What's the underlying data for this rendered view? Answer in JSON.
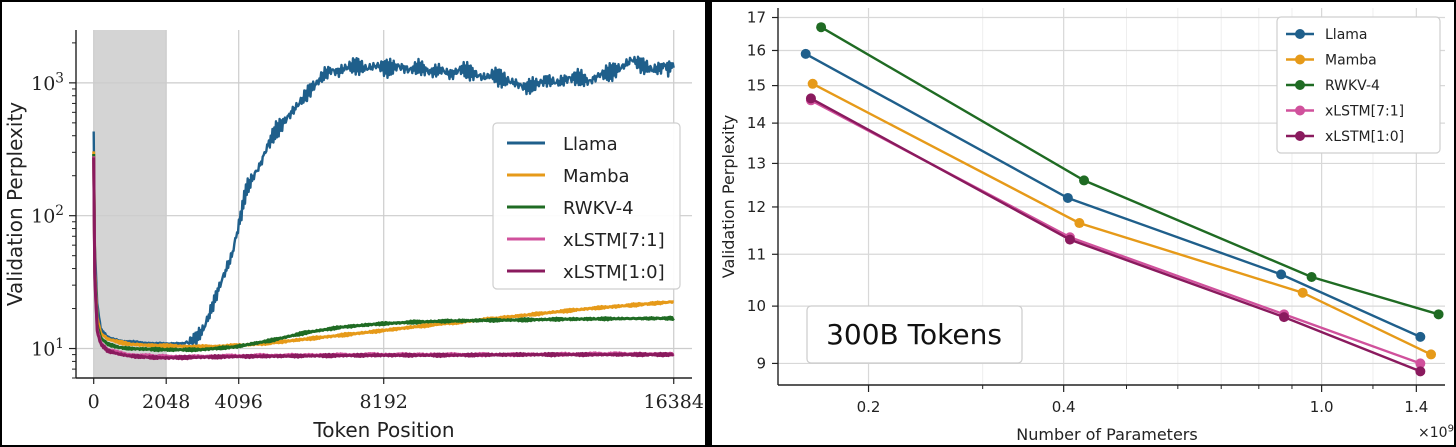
{
  "chart_data": [
    {
      "type": "line",
      "xlabel": "Token Position",
      "ylabel": "Validation Perplexity",
      "x_ticks": [
        0,
        2048,
        4096,
        8192,
        16384
      ],
      "y_tick_labels": [
        "10^1",
        "10^2",
        "10^3"
      ],
      "y_scale": "log",
      "xlim": [
        -500,
        16900
      ],
      "ylim": [
        6,
        2500
      ],
      "shaded_region": [
        0,
        2048
      ],
      "grid": true,
      "legend_position": "right",
      "series": [
        {
          "name": "Llama",
          "color": "#1f5f8b",
          "x": [
            0,
            30,
            100,
            200,
            400,
            700,
            1000,
            1500,
            2048,
            2500,
            2700,
            2900,
            3100,
            3300,
            3500,
            3700,
            3900,
            4100,
            4300,
            4500,
            4700,
            4900,
            5100,
            5300,
            5500,
            5700,
            5900,
            6100,
            6300,
            6500,
            6700,
            6900,
            7100,
            7400,
            7700,
            8000,
            8300,
            8600,
            8900,
            9200,
            9500,
            9800,
            10100,
            10400,
            10700,
            11000,
            11300,
            11600,
            11900,
            12200,
            12500,
            12800,
            13100,
            13400,
            13700,
            14000,
            14300,
            14600,
            14900,
            15200,
            15500,
            15800,
            16100,
            16384
          ],
          "y": [
            430,
            60,
            22,
            14,
            12.2,
            11.5,
            11.2,
            11.0,
            10.9,
            10.9,
            11.2,
            12,
            14,
            19,
            27,
            37,
            50,
            85,
            155,
            195,
            240,
            330,
            420,
            480,
            560,
            650,
            750,
            880,
            1000,
            1150,
            1250,
            1200,
            1300,
            1350,
            1280,
            1350,
            1280,
            1340,
            1250,
            1320,
            1200,
            1260,
            1150,
            1280,
            1180,
            1100,
            1150,
            1050,
            1000,
            920,
            980,
            1050,
            1000,
            1080,
            1100,
            1020,
            1150,
            1200,
            1300,
            1500,
            1350,
            1250,
            1320,
            1300
          ]
        },
        {
          "name": "Mamba",
          "color": "#e69a19",
          "x": [
            0,
            30,
            100,
            200,
            400,
            700,
            1000,
            1500,
            2048,
            3000,
            4000,
            5000,
            6000,
            7000,
            8000,
            9000,
            10000,
            11000,
            12000,
            13000,
            14000,
            15000,
            16384
          ],
          "y": [
            300,
            40,
            17,
            13,
            11.8,
            11.2,
            10.8,
            10.6,
            10.5,
            10.3,
            10.5,
            11.0,
            11.8,
            12.6,
            13.5,
            14.5,
            15.5,
            16.5,
            17.6,
            18.8,
            20.0,
            21.0,
            22.5
          ]
        },
        {
          "name": "RWKV-4",
          "color": "#1f6b23",
          "x": [
            0,
            30,
            100,
            200,
            400,
            700,
            1000,
            1500,
            2048,
            3000,
            4000,
            5000,
            6000,
            7000,
            8000,
            9000,
            10000,
            11000,
            12000,
            13000,
            14000,
            15000,
            16384
          ],
          "y": [
            290,
            38,
            15,
            12,
            10.8,
            10.2,
            10.0,
            9.9,
            9.8,
            9.8,
            10.3,
            11.5,
            13.2,
            14.5,
            15.3,
            15.8,
            16.1,
            16.3,
            16.4,
            16.6,
            16.7,
            16.8,
            16.9
          ]
        },
        {
          "name": "xLSTM[7:1]",
          "color": "#d0519c",
          "x": [
            0,
            30,
            100,
            200,
            400,
            700,
            1000,
            1500,
            2048,
            3000,
            4000,
            6000,
            8000,
            10000,
            12000,
            14000,
            16384
          ],
          "y": [
            280,
            35,
            14,
            11,
            9.8,
            9.3,
            9.0,
            8.8,
            8.7,
            8.7,
            8.8,
            8.9,
            9.0,
            9.0,
            9.0,
            9.1,
            9.1
          ]
        },
        {
          "name": "xLSTM[1:0]",
          "color": "#8a1a5e",
          "x": [
            0,
            30,
            100,
            200,
            400,
            700,
            1000,
            1500,
            2048,
            3000,
            4000,
            6000,
            8000,
            10000,
            12000,
            14000,
            16384
          ],
          "y": [
            275,
            34,
            13.5,
            10.8,
            9.6,
            9.1,
            8.8,
            8.6,
            8.5,
            8.6,
            8.7,
            8.8,
            8.9,
            8.9,
            9.0,
            9.0,
            9.0
          ]
        }
      ]
    },
    {
      "type": "line",
      "xlabel": "Number of Parameters",
      "ylabel": "Validation Perplexity",
      "x_offset_label": "×10^9",
      "x_ticks": [
        0.2,
        0.4,
        1.0,
        1.4
      ],
      "y_ticks": [
        9,
        10,
        11,
        12,
        13,
        14,
        15,
        16,
        17
      ],
      "x_scale": "log",
      "y_scale": "log",
      "xlim": [
        0.145,
        1.55
      ],
      "ylim": [
        8.65,
        17.3
      ],
      "grid": true,
      "legend_position": "top-right",
      "annotation": "300B Tokens",
      "series": [
        {
          "name": "Llama",
          "color": "#1f5f8b",
          "x": [
            0.16,
            0.406,
            0.866,
            1.42
          ],
          "y": [
            15.9,
            12.2,
            10.6,
            9.45
          ]
        },
        {
          "name": "Mamba",
          "color": "#e69a19",
          "x": [
            0.164,
            0.423,
            0.935,
            1.475
          ],
          "y": [
            15.05,
            11.65,
            10.25,
            9.15
          ]
        },
        {
          "name": "RWKV-4",
          "color": "#1f6b23",
          "x": [
            0.169,
            0.43,
            0.965,
            1.515
          ],
          "y": [
            16.7,
            12.6,
            10.55,
            9.85
          ]
        },
        {
          "name": "xLSTM[7:1]",
          "color": "#d0519c",
          "x": [
            0.163,
            0.409,
            0.875,
            1.42
          ],
          "y": [
            14.6,
            11.35,
            9.85,
            9.0
          ]
        },
        {
          "name": "xLSTM[1:0]",
          "color": "#8a1a5e",
          "x": [
            0.163,
            0.409,
            0.875,
            1.42
          ],
          "y": [
            14.65,
            11.3,
            9.8,
            8.87
          ]
        }
      ]
    }
  ]
}
